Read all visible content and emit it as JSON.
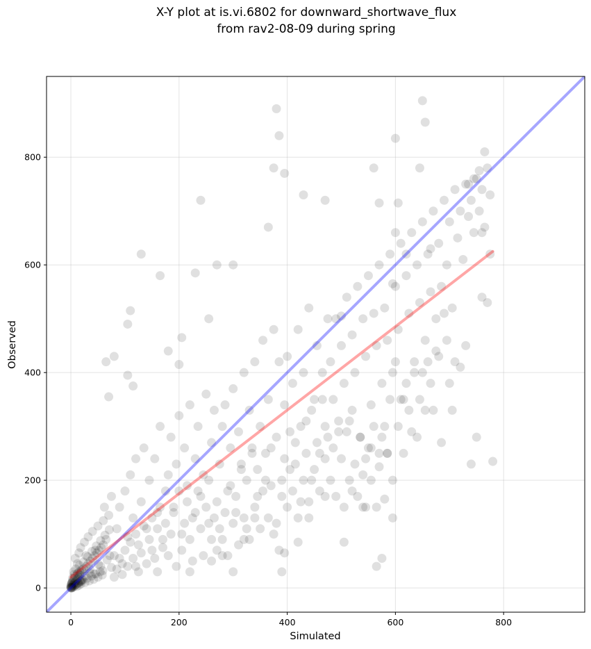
{
  "chart_data": {
    "type": "scatter",
    "title": "X-Y plot at is.vi.6802 for downward_shortwave_flux\nfrom rav2-08-09 during spring",
    "xlabel": "Simulated",
    "ylabel": "Observed",
    "xlim": [
      -45,
      950
    ],
    "ylim": [
      -45,
      950
    ],
    "xticks": [
      0,
      200,
      400,
      600,
      800
    ],
    "yticks": [
      0,
      200,
      400,
      600,
      800
    ],
    "grid": true,
    "point_color": "#000000",
    "point_alpha": 0.12,
    "one_to_one_line": {
      "from": [
        -45,
        -45
      ],
      "to": [
        950,
        950
      ],
      "color": "#0000ff",
      "alpha": 0.35
    },
    "fit_line": {
      "from": [
        0,
        20
      ],
      "to": [
        780,
        625
      ],
      "color": "#ff0000",
      "alpha": 0.35
    },
    "points": [
      [
        1,
        1
      ],
      [
        2,
        3
      ],
      [
        3,
        1
      ],
      [
        4,
        5
      ],
      [
        5,
        2
      ],
      [
        6,
        8
      ],
      [
        7,
        4
      ],
      [
        8,
        11
      ],
      [
        9,
        6
      ],
      [
        10,
        14
      ],
      [
        11,
        3
      ],
      [
        12,
        17
      ],
      [
        13,
        9
      ],
      [
        14,
        20
      ],
      [
        15,
        5
      ],
      [
        16,
        24
      ],
      [
        17,
        12
      ],
      [
        18,
        28
      ],
      [
        19,
        8
      ],
      [
        20,
        32
      ],
      [
        22,
        15
      ],
      [
        24,
        36
      ],
      [
        26,
        10
      ],
      [
        28,
        40
      ],
      [
        30,
        18
      ],
      [
        32,
        45
      ],
      [
        34,
        13
      ],
      [
        36,
        50
      ],
      [
        38,
        22
      ],
      [
        40,
        55
      ],
      [
        42,
        16
      ],
      [
        44,
        60
      ],
      [
        46,
        26
      ],
      [
        48,
        65
      ],
      [
        50,
        20
      ],
      [
        52,
        70
      ],
      [
        54,
        30
      ],
      [
        56,
        75
      ],
      [
        58,
        24
      ],
      [
        60,
        80
      ],
      [
        5,
        30
      ],
      [
        8,
        55
      ],
      [
        12,
        45
      ],
      [
        15,
        65
      ],
      [
        18,
        75
      ],
      [
        20,
        15
      ],
      [
        25,
        85
      ],
      [
        28,
        60
      ],
      [
        32,
        95
      ],
      [
        35,
        28
      ],
      [
        40,
        105
      ],
      [
        45,
        70
      ],
      [
        50,
        115
      ],
      [
        55,
        40
      ],
      [
        60,
        125
      ],
      [
        62,
        150
      ],
      [
        65,
        90
      ],
      [
        70,
        135
      ],
      [
        72,
        60
      ],
      [
        75,
        170
      ],
      [
        3,
        18
      ],
      [
        6,
        25
      ],
      [
        9,
        35
      ],
      [
        13,
        28
      ],
      [
        16,
        42
      ],
      [
        19,
        12
      ],
      [
        23,
        48
      ],
      [
        27,
        22
      ],
      [
        31,
        58
      ],
      [
        35,
        35
      ],
      [
        39,
        68
      ],
      [
        43,
        26
      ],
      [
        47,
        78
      ],
      [
        51,
        44
      ],
      [
        55,
        88
      ],
      [
        59,
        32
      ],
      [
        63,
        98
      ],
      [
        67,
        52
      ],
      [
        71,
        108
      ],
      [
        75,
        38
      ],
      [
        2,
        10
      ],
      [
        4,
        14
      ],
      [
        6,
        18
      ],
      [
        8,
        22
      ],
      [
        10,
        7
      ],
      [
        12,
        26
      ],
      [
        14,
        9
      ],
      [
        16,
        30
      ],
      [
        18,
        13
      ],
      [
        20,
        34
      ],
      [
        0,
        2
      ],
      [
        1,
        6
      ],
      [
        2,
        9
      ],
      [
        3,
        12
      ],
      [
        0,
        4
      ],
      [
        1,
        8
      ],
      [
        0,
        0
      ],
      [
        1,
        0
      ],
      [
        0,
        1
      ],
      [
        2,
        0
      ],
      [
        80,
        60
      ],
      [
        85,
        110
      ],
      [
        90,
        150
      ],
      [
        95,
        45
      ],
      [
        100,
        180
      ],
      [
        105,
        95
      ],
      [
        110,
        210
      ],
      [
        115,
        130
      ],
      [
        120,
        240
      ],
      [
        125,
        80
      ],
      [
        130,
        160
      ],
      [
        135,
        260
      ],
      [
        140,
        110
      ],
      [
        145,
        200
      ],
      [
        150,
        70
      ],
      [
        155,
        240
      ],
      [
        160,
        140
      ],
      [
        165,
        300
      ],
      [
        170,
        90
      ],
      [
        175,
        180
      ],
      [
        80,
        20
      ],
      [
        85,
        35
      ],
      [
        90,
        55
      ],
      [
        95,
        25
      ],
      [
        100,
        70
      ],
      [
        105,
        40
      ],
      [
        110,
        85
      ],
      [
        115,
        55
      ],
      [
        120,
        100
      ],
      [
        125,
        30
      ],
      [
        130,
        65
      ],
      [
        135,
        115
      ],
      [
        140,
        45
      ],
      [
        145,
        90
      ],
      [
        150,
        130
      ],
      [
        155,
        55
      ],
      [
        160,
        110
      ],
      [
        165,
        150
      ],
      [
        170,
        75
      ],
      [
        175,
        120
      ],
      [
        180,
        210
      ],
      [
        185,
        280
      ],
      [
        190,
        150
      ],
      [
        195,
        230
      ],
      [
        200,
        320
      ],
      [
        205,
        100
      ],
      [
        210,
        260
      ],
      [
        215,
        190
      ],
      [
        220,
        340
      ],
      [
        225,
        130
      ],
      [
        230,
        240
      ],
      [
        235,
        300
      ],
      [
        240,
        170
      ],
      [
        245,
        210
      ],
      [
        250,
        360
      ],
      [
        255,
        120
      ],
      [
        260,
        270
      ],
      [
        265,
        330
      ],
      [
        270,
        160
      ],
      [
        275,
        230
      ],
      [
        180,
        60
      ],
      [
        185,
        100
      ],
      [
        190,
        140
      ],
      [
        195,
        40
      ],
      [
        200,
        180
      ],
      [
        205,
        70
      ],
      [
        210,
        120
      ],
      [
        215,
        160
      ],
      [
        220,
        90
      ],
      [
        225,
        50
      ],
      [
        230,
        140
      ],
      [
        235,
        180
      ],
      [
        240,
        110
      ],
      [
        245,
        60
      ],
      [
        250,
        150
      ],
      [
        255,
        200
      ],
      [
        260,
        90
      ],
      [
        265,
        130
      ],
      [
        270,
        70
      ],
      [
        275,
        110
      ],
      [
        280,
        300
      ],
      [
        285,
        340
      ],
      [
        290,
        180
      ],
      [
        295,
        260
      ],
      [
        300,
        370
      ],
      [
        305,
        140
      ],
      [
        310,
        290
      ],
      [
        315,
        220
      ],
      [
        320,
        400
      ],
      [
        325,
        110
      ],
      [
        330,
        330
      ],
      [
        335,
        250
      ],
      [
        340,
        420
      ],
      [
        345,
        170
      ],
      [
        350,
        300
      ],
      [
        355,
        460
      ],
      [
        360,
        200
      ],
      [
        365,
        350
      ],
      [
        370,
        260
      ],
      [
        375,
        480
      ],
      [
        280,
        90
      ],
      [
        285,
        140
      ],
      [
        290,
        60
      ],
      [
        295,
        190
      ],
      [
        300,
        120
      ],
      [
        305,
        170
      ],
      [
        310,
        80
      ],
      [
        315,
        230
      ],
      [
        320,
        130
      ],
      [
        325,
        200
      ],
      [
        330,
        90
      ],
      [
        335,
        260
      ],
      [
        340,
        150
      ],
      [
        345,
        220
      ],
      [
        350,
        110
      ],
      [
        355,
        180
      ],
      [
        360,
        250
      ],
      [
        365,
        130
      ],
      [
        370,
        190
      ],
      [
        375,
        100
      ],
      [
        380,
        280
      ],
      [
        385,
        420
      ],
      [
        390,
        170
      ],
      [
        395,
        340
      ],
      [
        400,
        430
      ],
      [
        405,
        220
      ],
      [
        410,
        380
      ],
      [
        415,
        270
      ],
      [
        420,
        480
      ],
      [
        425,
        160
      ],
      [
        430,
        400
      ],
      [
        435,
        310
      ],
      [
        440,
        520
      ],
      [
        445,
        200
      ],
      [
        450,
        350
      ],
      [
        455,
        450
      ],
      [
        460,
        250
      ],
      [
        465,
        400
      ],
      [
        470,
        300
      ],
      [
        475,
        500
      ],
      [
        380,
        120
      ],
      [
        385,
        70
      ],
      [
        390,
        200
      ],
      [
        395,
        240
      ],
      [
        400,
        150
      ],
      [
        405,
        290
      ],
      [
        410,
        180
      ],
      [
        415,
        230
      ],
      [
        420,
        130
      ],
      [
        425,
        300
      ],
      [
        430,
        200
      ],
      [
        435,
        250
      ],
      [
        440,
        160
      ],
      [
        445,
        330
      ],
      [
        450,
        220
      ],
      [
        455,
        270
      ],
      [
        460,
        180
      ],
      [
        465,
        350
      ],
      [
        470,
        240
      ],
      [
        475,
        280
      ],
      [
        480,
        420
      ],
      [
        485,
        350
      ],
      [
        490,
        500
      ],
      [
        495,
        290
      ],
      [
        500,
        450
      ],
      [
        505,
        380
      ],
      [
        510,
        540
      ],
      [
        515,
        310
      ],
      [
        520,
        470
      ],
      [
        525,
        400
      ],
      [
        530,
        560
      ],
      [
        535,
        280
      ],
      [
        540,
        500
      ],
      [
        545,
        430
      ],
      [
        550,
        580
      ],
      [
        555,
        340
      ],
      [
        560,
        510
      ],
      [
        565,
        450
      ],
      [
        570,
        600
      ],
      [
        575,
        380
      ],
      [
        480,
        200
      ],
      [
        485,
        260
      ],
      [
        490,
        170
      ],
      [
        495,
        310
      ],
      [
        500,
        240
      ],
      [
        505,
        150
      ],
      [
        510,
        290
      ],
      [
        515,
        200
      ],
      [
        520,
        330
      ],
      [
        525,
        230
      ],
      [
        530,
        170
      ],
      [
        535,
        280
      ],
      [
        540,
        210
      ],
      [
        545,
        150
      ],
      [
        550,
        260
      ],
      [
        555,
        200
      ],
      [
        560,
        300
      ],
      [
        565,
        150
      ],
      [
        570,
        250
      ],
      [
        575,
        280
      ],
      [
        580,
        520
      ],
      [
        585,
        460
      ],
      [
        590,
        620
      ],
      [
        595,
        400
      ],
      [
        600,
        560
      ],
      [
        605,
        480
      ],
      [
        610,
        640
      ],
      [
        615,
        350
      ],
      [
        620,
        580
      ],
      [
        625,
        510
      ],
      [
        630,
        660
      ],
      [
        635,
        420
      ],
      [
        640,
        600
      ],
      [
        645,
        530
      ],
      [
        650,
        680
      ],
      [
        655,
        460
      ],
      [
        660,
        620
      ],
      [
        665,
        550
      ],
      [
        670,
        700
      ],
      [
        675,
        500
      ],
      [
        580,
        300
      ],
      [
        585,
        250
      ],
      [
        590,
        350
      ],
      [
        595,
        200
      ],
      [
        600,
        420
      ],
      [
        605,
        300
      ],
      [
        610,
        350
      ],
      [
        615,
        250
      ],
      [
        620,
        380
      ],
      [
        625,
        330
      ],
      [
        630,
        290
      ],
      [
        635,
        400
      ],
      [
        640,
        280
      ],
      [
        645,
        350
      ],
      [
        650,
        400
      ],
      [
        655,
        330
      ],
      [
        660,
        420
      ],
      [
        665,
        380
      ],
      [
        670,
        330
      ],
      [
        675,
        440
      ],
      [
        680,
        640
      ],
      [
        685,
        560
      ],
      [
        690,
        720
      ],
      [
        695,
        600
      ],
      [
        700,
        680
      ],
      [
        705,
        520
      ],
      [
        710,
        740
      ],
      [
        715,
        650
      ],
      [
        720,
        700
      ],
      [
        725,
        610
      ],
      [
        730,
        750
      ],
      [
        735,
        690
      ],
      [
        740,
        720
      ],
      [
        745,
        660
      ],
      [
        750,
        760
      ],
      [
        755,
        700
      ],
      [
        760,
        740
      ],
      [
        765,
        670
      ],
      [
        770,
        780
      ],
      [
        775,
        730
      ],
      [
        680,
        430
      ],
      [
        690,
        510
      ],
      [
        700,
        380
      ],
      [
        710,
        420
      ],
      [
        720,
        410
      ],
      [
        730,
        450
      ],
      [
        740,
        230
      ],
      [
        750,
        280
      ],
      [
        760,
        540
      ],
      [
        770,
        530
      ],
      [
        780,
        235
      ],
      [
        760,
        660
      ],
      [
        745,
        760
      ],
      [
        735,
        750
      ],
      [
        755,
        775
      ],
      [
        765,
        810
      ],
      [
        775,
        620
      ],
      [
        705,
        330
      ],
      [
        695,
        460
      ],
      [
        685,
        270
      ],
      [
        380,
        890
      ],
      [
        385,
        840
      ],
      [
        395,
        770
      ],
      [
        375,
        780
      ],
      [
        365,
        670
      ],
      [
        240,
        720
      ],
      [
        165,
        580
      ],
      [
        130,
        620
      ],
      [
        110,
        515
      ],
      [
        105,
        490
      ],
      [
        65,
        420
      ],
      [
        80,
        430
      ],
      [
        70,
        355
      ],
      [
        105,
        395
      ],
      [
        115,
        375
      ],
      [
        180,
        440
      ],
      [
        200,
        415
      ],
      [
        205,
        465
      ],
      [
        255,
        500
      ],
      [
        300,
        600
      ],
      [
        270,
        600
      ],
      [
        230,
        585
      ],
      [
        430,
        730
      ],
      [
        470,
        720
      ],
      [
        500,
        505
      ],
      [
        560,
        780
      ],
      [
        570,
        715
      ],
      [
        600,
        835
      ],
      [
        605,
        715
      ],
      [
        650,
        905
      ],
      [
        655,
        865
      ],
      [
        645,
        780
      ],
      [
        600,
        660
      ],
      [
        620,
        620
      ],
      [
        595,
        565
      ],
      [
        665,
        630
      ],
      [
        555,
        260
      ],
      [
        580,
        165
      ],
      [
        575,
        55
      ],
      [
        595,
        130
      ],
      [
        520,
        180
      ],
      [
        540,
        150
      ],
      [
        565,
        40
      ],
      [
        585,
        250
      ],
      [
        570,
        225
      ],
      [
        545,
        240
      ],
      [
        505,
        85
      ],
      [
        470,
        170
      ],
      [
        440,
        130
      ],
      [
        420,
        85
      ],
      [
        390,
        30
      ],
      [
        395,
        65
      ],
      [
        340,
        130
      ],
      [
        320,
        90
      ],
      [
        300,
        30
      ],
      [
        280,
        60
      ],
      [
        260,
        50
      ],
      [
        220,
        30
      ],
      [
        160,
        30
      ],
      [
        120,
        40
      ]
    ]
  }
}
